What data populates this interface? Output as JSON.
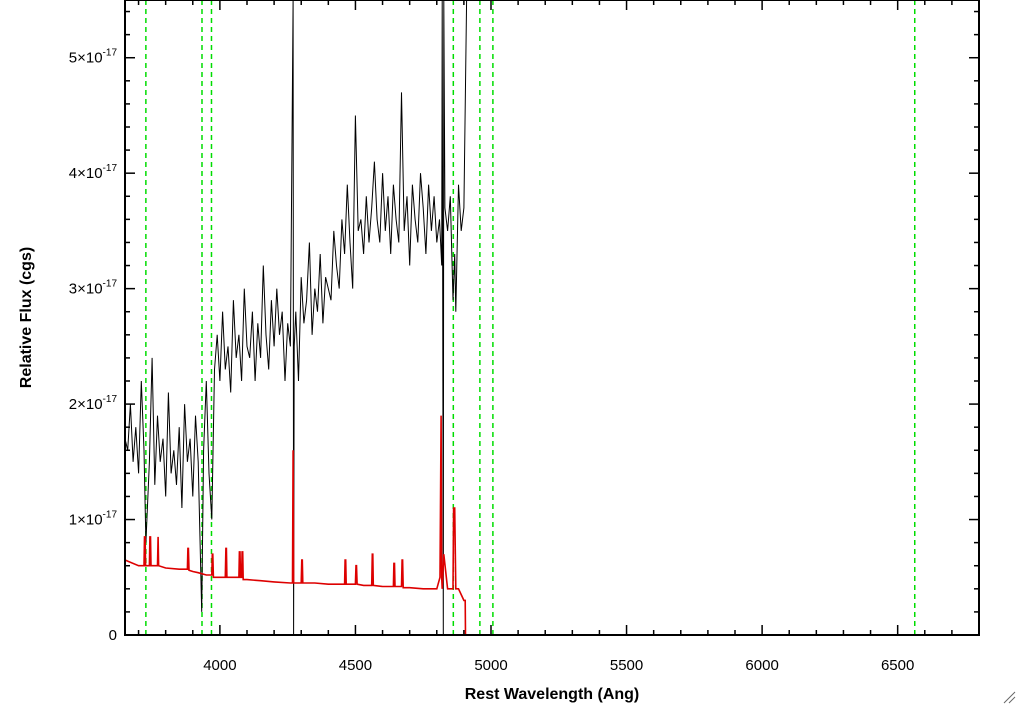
{
  "chart_data": {
    "type": "line",
    "xlabel": "Rest Wavelength (Ang)",
    "ylabel": "Relative Flux (cgs)",
    "xlim": [
      3650,
      6800
    ],
    "ylim": [
      0,
      5.5e-17
    ],
    "x_ticks": [
      4000,
      4500,
      5000,
      5500,
      6000,
      6500
    ],
    "y_ticks": [
      {
        "value": 0,
        "mantissa": "0",
        "exponent": ""
      },
      {
        "value": 1e-17,
        "mantissa": "1×10",
        "exponent": "-17"
      },
      {
        "value": 2e-17,
        "mantissa": "2×10",
        "exponent": "-17"
      },
      {
        "value": 3e-17,
        "mantissa": "3×10",
        "exponent": "-17"
      },
      {
        "value": 4e-17,
        "mantissa": "4×10",
        "exponent": "-17"
      },
      {
        "value": 5e-17,
        "mantissa": "5×10",
        "exponent": "-17"
      }
    ],
    "vertical_markers": {
      "color": "#00dd00",
      "style": "dashed",
      "x": [
        3727,
        3934,
        3969,
        4861,
        4959,
        5007,
        6563
      ]
    },
    "series": [
      {
        "color": "#000000",
        "x": [
          3650,
          3660,
          3670,
          3680,
          3690,
          3700,
          3710,
          3720,
          3727,
          3740,
          3750,
          3760,
          3770,
          3780,
          3790,
          3800,
          3810,
          3820,
          3830,
          3840,
          3850,
          3860,
          3870,
          3880,
          3890,
          3900,
          3910,
          3920,
          3933,
          3940,
          3950,
          3960,
          3970,
          3980,
          3990,
          4000,
          4010,
          4020,
          4030,
          4040,
          4050,
          4060,
          4070,
          4080,
          4090,
          4100,
          4110,
          4120,
          4130,
          4140,
          4150,
          4160,
          4170,
          4180,
          4190,
          4200,
          4210,
          4220,
          4230,
          4240,
          4250,
          4260,
          4270,
          4272,
          4274,
          4280,
          4290,
          4300,
          4310,
          4320,
          4330,
          4340,
          4350,
          4360,
          4370,
          4380,
          4390,
          4400,
          4410,
          4420,
          4430,
          4440,
          4450,
          4460,
          4470,
          4480,
          4490,
          4500,
          4510,
          4520,
          4530,
          4540,
          4550,
          4560,
          4570,
          4580,
          4590,
          4600,
          4610,
          4620,
          4630,
          4640,
          4650,
          4660,
          4670,
          4680,
          4690,
          4700,
          4710,
          4720,
          4730,
          4740,
          4750,
          4760,
          4770,
          4780,
          4790,
          4800,
          4810,
          4818,
          4820,
          4824,
          4826,
          4830,
          4840,
          4850,
          4860,
          4866,
          4870,
          4880,
          4890,
          4900,
          4910
        ],
        "y": [
          1.7e-17,
          1.6e-17,
          2e-17,
          1.5e-17,
          1.8e-17,
          1.4e-17,
          2.2e-17,
          1.6e-17,
          8e-18,
          1.5e-17,
          2.4e-17,
          1.3e-17,
          1.9e-17,
          1.5e-17,
          1.7e-17,
          1.2e-17,
          2.1e-17,
          1.4e-17,
          1.6e-17,
          1.3e-17,
          1.8e-17,
          1.1e-17,
          2e-17,
          1.5e-17,
          1.7e-17,
          1.2e-17,
          1.9e-17,
          1.5e-17,
          2e-18,
          1.6e-17,
          2.2e-17,
          1.4e-17,
          1e-17,
          2.3e-17,
          2.6e-17,
          2.2e-17,
          2.8e-17,
          2.3e-17,
          2.5e-17,
          2.1e-17,
          2.9e-17,
          2.4e-17,
          2.6e-17,
          2.2e-17,
          3e-17,
          2.5e-17,
          2.4e-17,
          2.8e-17,
          2.2e-17,
          2.7e-17,
          2.4e-17,
          3.2e-17,
          2.6e-17,
          2.3e-17,
          2.9e-17,
          2.5e-17,
          3e-17,
          2.6e-17,
          2.8e-17,
          2.2e-17,
          2.7e-17,
          2.5e-17,
          5.5e-17,
          0.0,
          2.5e-17,
          2.8e-17,
          2.2e-17,
          3.1e-17,
          2.7e-17,
          2.9e-17,
          3.4e-17,
          2.6e-17,
          3e-17,
          2.8e-17,
          3.3e-17,
          2.7e-17,
          3.1e-17,
          3e-17,
          2.9e-17,
          3.5e-17,
          3.2e-17,
          3e-17,
          3.6e-17,
          3.3e-17,
          3.9e-17,
          3.4e-17,
          3e-17,
          4.5e-17,
          3.5e-17,
          3.6e-17,
          3.3e-17,
          3.8e-17,
          3.4e-17,
          3.7e-17,
          4.1e-17,
          3.6e-17,
          3.4e-17,
          4e-17,
          3.5e-17,
          3.8e-17,
          3.3e-17,
          3.9e-17,
          3.6e-17,
          3.4e-17,
          4.7e-17,
          3.5e-17,
          3.8e-17,
          3.2e-17,
          3.9e-17,
          3.6e-17,
          3.4e-17,
          4e-17,
          3.7e-17,
          3.3e-17,
          3.9e-17,
          3.5e-17,
          3.8e-17,
          3.4e-17,
          3.6e-17,
          3.2e-17,
          5.5e-17,
          0.0,
          5.5e-17,
          3.7e-17,
          3.5e-17,
          3.8e-17,
          2.9e-17,
          3.3e-17,
          2.8e-17,
          3.9e-17,
          3.5e-17,
          3.7e-17,
          5.5e-17
        ]
      },
      {
        "color": "#dd0000",
        "x": [
          3650,
          3700,
          3720,
          3722,
          3724,
          3726,
          3740,
          3742,
          3744,
          3746,
          3770,
          3772,
          3774,
          3800,
          3850,
          3880,
          3882,
          3884,
          3886,
          3900,
          3920,
          3950,
          3970,
          3972,
          3974,
          3976,
          4000,
          4020,
          4022,
          4024,
          4026,
          4050,
          4070,
          4072,
          4074,
          4076,
          4080,
          4082,
          4084,
          4086,
          4100,
          4150,
          4200,
          4260,
          4268,
          4270,
          4272,
          4280,
          4300,
          4302,
          4304,
          4306,
          4350,
          4400,
          4460,
          4462,
          4464,
          4466,
          4500,
          4502,
          4504,
          4506,
          4530,
          4560,
          4562,
          4564,
          4566,
          4600,
          4640,
          4642,
          4644,
          4646,
          4670,
          4672,
          4674,
          4676,
          4700,
          4750,
          4780,
          4800,
          4812,
          4816,
          4818,
          4820,
          4826,
          4840,
          4860,
          4862,
          4866,
          4870,
          4880,
          4900,
          4905,
          4906,
          4910,
          5000,
          6800
        ],
        "y": [
          6.5e-18,
          6e-18,
          6e-18,
          8.5e-18,
          8.5e-18,
          6e-18,
          6e-18,
          8.5e-18,
          8.5e-18,
          6e-18,
          6e-18,
          8.5e-18,
          6e-18,
          5.8e-18,
          5.7e-18,
          5.7e-18,
          7.5e-18,
          7.5e-18,
          5.6e-18,
          5.5e-18,
          5.4e-18,
          5.2e-18,
          5.2e-18,
          7e-18,
          7e-18,
          5e-18,
          5e-18,
          5e-18,
          7.5e-18,
          7.5e-18,
          5e-18,
          5e-18,
          5e-18,
          7.2e-18,
          7.2e-18,
          5e-18,
          5e-18,
          7.2e-18,
          7.2e-18,
          4.8e-18,
          4.8e-18,
          4.7e-18,
          4.6e-18,
          4.5e-18,
          4.5e-18,
          1.6e-17,
          4.5e-18,
          4.5e-18,
          4.5e-18,
          6.5e-18,
          6.5e-18,
          4.5e-18,
          4.5e-18,
          4.4e-18,
          4.4e-18,
          6.5e-18,
          6.5e-18,
          4.4e-18,
          4.4e-18,
          6e-18,
          6e-18,
          4.4e-18,
          4.3e-18,
          4.3e-18,
          7e-18,
          7e-18,
          4.3e-18,
          4.2e-18,
          4.2e-18,
          6.2e-18,
          6.2e-18,
          4.2e-18,
          4.2e-18,
          6.5e-18,
          6.5e-18,
          4.1e-18,
          4.1e-18,
          4e-18,
          4e-18,
          4e-18,
          5e-18,
          1.9e-17,
          5e-18,
          4e-18,
          7e-18,
          4e-18,
          4e-18,
          1.1e-17,
          1.1e-17,
          4e-18,
          4e-18,
          3e-18,
          3e-18,
          0.0,
          0.0,
          0.0,
          0.0
        ]
      }
    ]
  }
}
